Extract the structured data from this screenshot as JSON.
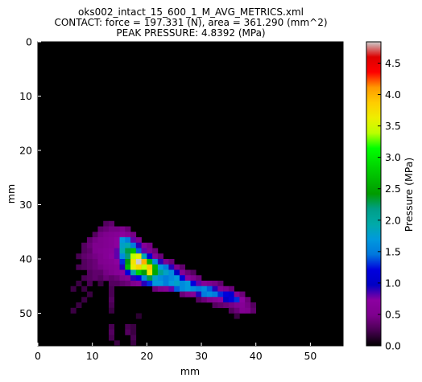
{
  "chart_data": {
    "type": "heatmap",
    "title_lines": [
      "oks002_intact_15_600_1_M_AVG_METRICS.xml",
      "CONTACT: force = 197.331 (N), area = 361.290 (mm^2)",
      "PEAK PRESSURE: 4.8392 (MPa)"
    ],
    "xlabel": "mm",
    "ylabel": "mm",
    "xlim": [
      0,
      56
    ],
    "ylim": [
      0,
      56
    ],
    "y_inverted": true,
    "xticks": [
      "0",
      "10",
      "20",
      "30",
      "40",
      "50"
    ],
    "yticks": [
      "0",
      "10",
      "20",
      "30",
      "40",
      "50"
    ],
    "colormap": "nipy_spectral",
    "background_color": "#000000",
    "colorbar": {
      "label": "Pressure (MPa)",
      "range": [
        0.0,
        4.8392
      ],
      "ticks": [
        "0.0",
        "0.5",
        "1.0",
        "1.5",
        "2.0",
        "2.5",
        "3.0",
        "3.5",
        "4.0",
        "4.5"
      ]
    },
    "peak_value": 4.8392,
    "cells": [
      [
        12,
        33,
        0.3
      ],
      [
        13,
        33,
        0.35
      ],
      [
        11,
        34,
        0.35
      ],
      [
        12,
        34,
        0.4
      ],
      [
        13,
        34,
        0.45
      ],
      [
        14,
        34,
        0.45
      ],
      [
        15,
        34,
        0.5
      ],
      [
        16,
        34,
        0.4
      ],
      [
        10,
        35,
        0.3
      ],
      [
        11,
        35,
        0.45
      ],
      [
        12,
        35,
        0.5
      ],
      [
        13,
        35,
        0.55
      ],
      [
        14,
        35,
        0.6
      ],
      [
        15,
        35,
        0.7
      ],
      [
        16,
        35,
        0.6
      ],
      [
        17,
        35,
        0.45
      ],
      [
        9,
        36,
        0.35
      ],
      [
        10,
        36,
        0.45
      ],
      [
        11,
        36,
        0.5
      ],
      [
        12,
        36,
        0.55
      ],
      [
        13,
        36,
        0.6
      ],
      [
        14,
        36,
        0.7
      ],
      [
        15,
        36,
        1.7
      ],
      [
        16,
        36,
        1.5
      ],
      [
        17,
        36,
        0.8
      ],
      [
        18,
        36,
        0.5
      ],
      [
        8,
        37,
        0.3
      ],
      [
        9,
        37,
        0.4
      ],
      [
        10,
        37,
        0.5
      ],
      [
        11,
        37,
        0.5
      ],
      [
        12,
        37,
        0.55
      ],
      [
        13,
        37,
        0.6
      ],
      [
        14,
        37,
        0.7
      ],
      [
        15,
        37,
        1.8
      ],
      [
        16,
        37,
        1.9
      ],
      [
        17,
        37,
        1.5
      ],
      [
        18,
        37,
        0.9
      ],
      [
        19,
        37,
        0.6
      ],
      [
        20,
        37,
        0.45
      ],
      [
        8,
        38,
        0.3
      ],
      [
        9,
        38,
        0.35
      ],
      [
        10,
        38,
        0.5
      ],
      [
        11,
        38,
        0.55
      ],
      [
        12,
        38,
        0.6
      ],
      [
        13,
        38,
        0.65
      ],
      [
        14,
        38,
        0.8
      ],
      [
        15,
        38,
        1.9
      ],
      [
        16,
        38,
        2.3
      ],
      [
        17,
        38,
        2.7
      ],
      [
        18,
        38,
        1.4
      ],
      [
        19,
        38,
        0.8
      ],
      [
        20,
        38,
        0.5
      ],
      [
        21,
        38,
        0.4
      ],
      [
        7,
        39,
        0.25
      ],
      [
        8,
        39,
        0.35
      ],
      [
        9,
        39,
        0.4
      ],
      [
        10,
        39,
        0.45
      ],
      [
        11,
        39,
        0.5
      ],
      [
        12,
        39,
        0.6
      ],
      [
        13,
        39,
        0.7
      ],
      [
        14,
        39,
        0.8
      ],
      [
        15,
        39,
        1.6
      ],
      [
        16,
        39,
        2.2
      ],
      [
        17,
        39,
        3.4
      ],
      [
        18,
        39,
        3.6
      ],
      [
        19,
        39,
        1.9
      ],
      [
        20,
        39,
        1.1
      ],
      [
        21,
        39,
        0.6
      ],
      [
        22,
        39,
        0.4
      ],
      [
        8,
        40,
        0.3
      ],
      [
        9,
        40,
        0.35
      ],
      [
        10,
        40,
        0.4
      ],
      [
        11,
        40,
        0.5
      ],
      [
        12,
        40,
        0.55
      ],
      [
        13,
        40,
        0.6
      ],
      [
        14,
        40,
        0.7
      ],
      [
        15,
        40,
        1.3
      ],
      [
        16,
        40,
        2.4
      ],
      [
        17,
        40,
        3.7
      ],
      [
        18,
        40,
        4.84
      ],
      [
        19,
        40,
        4.0
      ],
      [
        20,
        40,
        2.6
      ],
      [
        21,
        40,
        1.6
      ],
      [
        22,
        40,
        0.9
      ],
      [
        23,
        40,
        0.5
      ],
      [
        24,
        40,
        0.4
      ],
      [
        7,
        41,
        0.25
      ],
      [
        8,
        41,
        0.3
      ],
      [
        9,
        41,
        0.35
      ],
      [
        10,
        41,
        0.4
      ],
      [
        11,
        41,
        0.45
      ],
      [
        12,
        41,
        0.5
      ],
      [
        13,
        41,
        0.55
      ],
      [
        14,
        41,
        0.6
      ],
      [
        15,
        41,
        0.9
      ],
      [
        16,
        41,
        2.7
      ],
      [
        17,
        41,
        3.6
      ],
      [
        18,
        41,
        3.8
      ],
      [
        19,
        41,
        3.4
      ],
      [
        20,
        41,
        3.9
      ],
      [
        21,
        41,
        2.6
      ],
      [
        22,
        41,
        1.7
      ],
      [
        23,
        41,
        1.5
      ],
      [
        24,
        41,
        0.9
      ],
      [
        25,
        41,
        0.5
      ],
      [
        26,
        41,
        0.35
      ],
      [
        9,
        42,
        0.3
      ],
      [
        10,
        42,
        0.35
      ],
      [
        11,
        42,
        0.35
      ],
      [
        12,
        42,
        0.45
      ],
      [
        13,
        42,
        0.5
      ],
      [
        14,
        42,
        0.6
      ],
      [
        15,
        42,
        0.7
      ],
      [
        16,
        42,
        1.2
      ],
      [
        17,
        42,
        1.9
      ],
      [
        18,
        42,
        2.8
      ],
      [
        19,
        42,
        2.4
      ],
      [
        20,
        42,
        3.7
      ],
      [
        21,
        42,
        2.5
      ],
      [
        22,
        42,
        2.1
      ],
      [
        23,
        42,
        1.8
      ],
      [
        24,
        42,
        1.6
      ],
      [
        25,
        42,
        1.0
      ],
      [
        26,
        42,
        0.6
      ],
      [
        27,
        42,
        0.4
      ],
      [
        28,
        42,
        0.3
      ],
      [
        8,
        43,
        0.25
      ],
      [
        9,
        43,
        0.3
      ],
      [
        10,
        43,
        0.35
      ],
      [
        11,
        43,
        0.3
      ],
      [
        12,
        43,
        0.4
      ],
      [
        13,
        43,
        0.35
      ],
      [
        14,
        43,
        0.4
      ],
      [
        15,
        43,
        0.5
      ],
      [
        16,
        43,
        0.6
      ],
      [
        17,
        43,
        0.9
      ],
      [
        18,
        43,
        1.2
      ],
      [
        19,
        43,
        1.6
      ],
      [
        20,
        43,
        2.3
      ],
      [
        21,
        43,
        1.8
      ],
      [
        22,
        43,
        1.6
      ],
      [
        23,
        43,
        1.5
      ],
      [
        24,
        43,
        1.6
      ],
      [
        25,
        43,
        1.7
      ],
      [
        26,
        43,
        1.2
      ],
      [
        27,
        43,
        0.7
      ],
      [
        28,
        43,
        0.5
      ],
      [
        29,
        43,
        0.4
      ],
      [
        7,
        44,
        0.2
      ],
      [
        9,
        44,
        0.25
      ],
      [
        11,
        44,
        0.2
      ],
      [
        13,
        44,
        0.3
      ],
      [
        14,
        44,
        0.3
      ],
      [
        15,
        44,
        0.35
      ],
      [
        16,
        44,
        0.4
      ],
      [
        17,
        44,
        0.5
      ],
      [
        18,
        44,
        0.6
      ],
      [
        19,
        44,
        0.9
      ],
      [
        20,
        44,
        1.3
      ],
      [
        21,
        44,
        1.7
      ],
      [
        22,
        44,
        1.7
      ],
      [
        23,
        44,
        1.5
      ],
      [
        24,
        44,
        1.7
      ],
      [
        25,
        44,
        1.8
      ],
      [
        26,
        44,
        1.6
      ],
      [
        27,
        44,
        1.7
      ],
      [
        28,
        44,
        1.2
      ],
      [
        29,
        44,
        0.8
      ],
      [
        30,
        44,
        0.6
      ],
      [
        31,
        44,
        0.5
      ],
      [
        32,
        44,
        0.45
      ],
      [
        33,
        44,
        0.35
      ],
      [
        6,
        45,
        0.2
      ],
      [
        8,
        45,
        0.2
      ],
      [
        13,
        45,
        0.25
      ],
      [
        21,
        45,
        0.4
      ],
      [
        22,
        45,
        0.5
      ],
      [
        23,
        45,
        0.6
      ],
      [
        24,
        45,
        0.8
      ],
      [
        25,
        45,
        1.4
      ],
      [
        26,
        45,
        1.6
      ],
      [
        27,
        45,
        1.7
      ],
      [
        28,
        45,
        1.6
      ],
      [
        29,
        45,
        1.5
      ],
      [
        30,
        45,
        1.6
      ],
      [
        31,
        45,
        1.4
      ],
      [
        32,
        45,
        0.9
      ],
      [
        33,
        45,
        0.6
      ],
      [
        34,
        45,
        0.5
      ],
      [
        35,
        45,
        0.4
      ],
      [
        9,
        46,
        0.2
      ],
      [
        13,
        46,
        0.25
      ],
      [
        26,
        46,
        0.4
      ],
      [
        27,
        46,
        0.5
      ],
      [
        28,
        46,
        0.6
      ],
      [
        29,
        46,
        0.9
      ],
      [
        30,
        46,
        1.5
      ],
      [
        31,
        46,
        1.6
      ],
      [
        32,
        46,
        1.5
      ],
      [
        33,
        46,
        1.3
      ],
      [
        34,
        46,
        1.2
      ],
      [
        35,
        46,
        1.1
      ],
      [
        36,
        46,
        0.6
      ],
      [
        37,
        46,
        0.4
      ],
      [
        8,
        47,
        0.2
      ],
      [
        13,
        47,
        0.3
      ],
      [
        29,
        47,
        0.3
      ],
      [
        30,
        47,
        0.4
      ],
      [
        31,
        47,
        0.5
      ],
      [
        32,
        47,
        0.6
      ],
      [
        33,
        47,
        0.7
      ],
      [
        34,
        47,
        1.0
      ],
      [
        35,
        47,
        1.2
      ],
      [
        36,
        47,
        1.3
      ],
      [
        37,
        47,
        0.7
      ],
      [
        38,
        47,
        0.4
      ],
      [
        7,
        48,
        0.2
      ],
      [
        13,
        48,
        0.25
      ],
      [
        32,
        48,
        0.3
      ],
      [
        33,
        48,
        0.35
      ],
      [
        34,
        48,
        0.4
      ],
      [
        35,
        48,
        0.45
      ],
      [
        36,
        48,
        0.55
      ],
      [
        37,
        48,
        0.6
      ],
      [
        38,
        48,
        0.45
      ],
      [
        39,
        48,
        0.3
      ],
      [
        6,
        49,
        0.2
      ],
      [
        13,
        49,
        0.2
      ],
      [
        35,
        49,
        0.3
      ],
      [
        36,
        49,
        0.4
      ],
      [
        37,
        49,
        0.55
      ],
      [
        38,
        49,
        0.5
      ],
      [
        39,
        49,
        0.35
      ],
      [
        18,
        50,
        0.15
      ],
      [
        36,
        50,
        0.2
      ],
      [
        13,
        52,
        0.25
      ],
      [
        16,
        52,
        0.25
      ],
      [
        17,
        52,
        0.2
      ],
      [
        13,
        53,
        0.3
      ],
      [
        16,
        53,
        0.3
      ],
      [
        17,
        53,
        0.2
      ],
      [
        13,
        54,
        0.25
      ],
      [
        17,
        54,
        0.25
      ],
      [
        14,
        55,
        0.2
      ],
      [
        17,
        55,
        0.2
      ]
    ]
  }
}
